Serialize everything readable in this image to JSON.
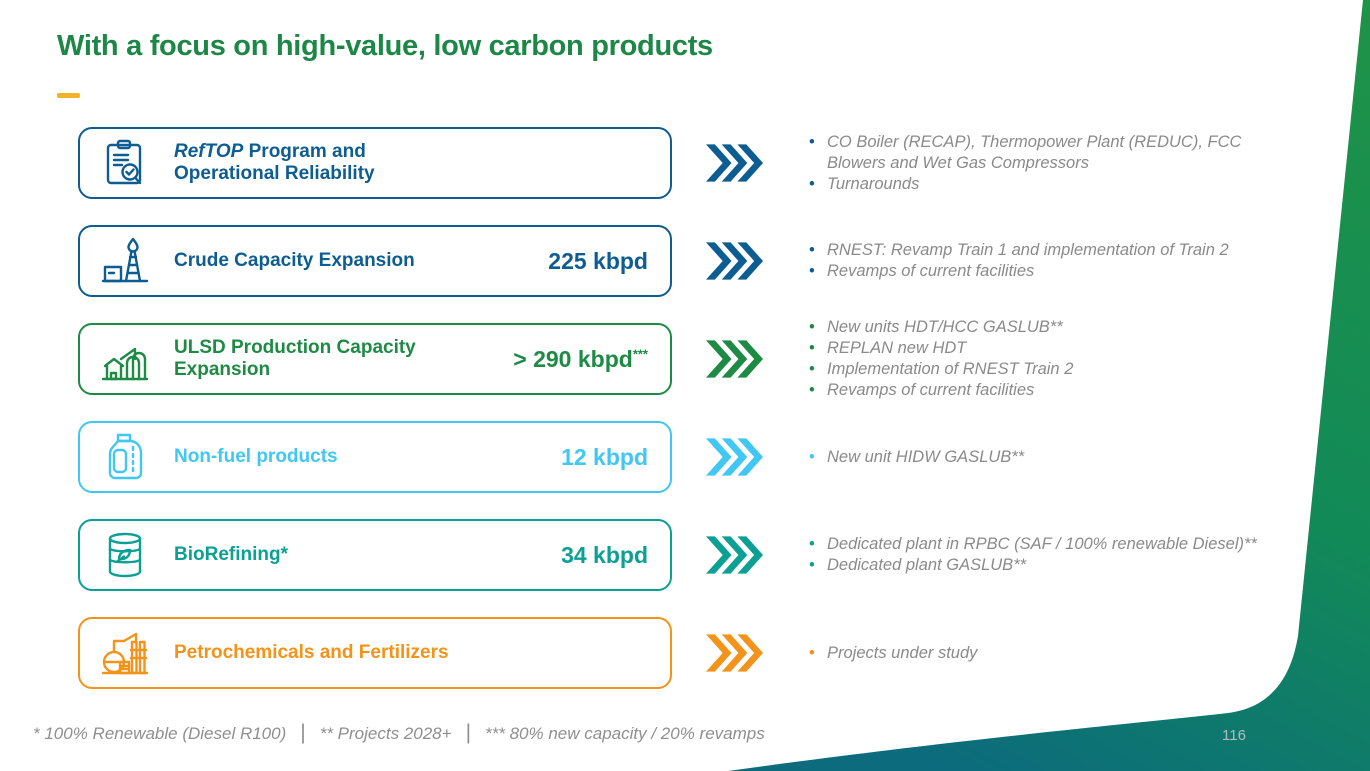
{
  "slide": {
    "title": "With a focus on high-value, low carbon products",
    "page_number": "116",
    "colors": {
      "title": "#1c8747",
      "accent_dash": "#f2b229",
      "swoosh_top": "#1f9347",
      "swoosh_bottom": "#0c6b7d",
      "bullet_text": "#8a8a8a"
    },
    "footnotes": {
      "items": [
        "* 100% Renewable (Diesel R100)",
        "** Projects 2028+",
        "*** 80% new capacity / 20% revamps"
      ],
      "separator": "|"
    },
    "rows": [
      {
        "id": "reftop-program",
        "icon": "clipboard-checklist-icon",
        "label_italic": "RefTOP",
        "label": " Program and\nOperational Reliability",
        "value": "",
        "value_sup": "",
        "color": "#0d5d92",
        "bullets": [
          "CO Boiler (RECAP), Thermopower Plant  (REDUC), FCC Blowers and Wet Gas Compressors",
          "Turnarounds"
        ]
      },
      {
        "id": "crude-capacity-expansion",
        "icon": "oil-derrick-icon",
        "label_italic": "",
        "label": "Crude Capacity Expansion",
        "value": "225 kbpd",
        "value_sup": "",
        "color": "#0d5d92",
        "bullets": [
          "RNEST: Revamp Train 1 and implementation of Train 2",
          "Revamps of current facilities"
        ]
      },
      {
        "id": "ulsd-production-capacity-expansion",
        "icon": "refinery-icon",
        "label_italic": "",
        "label": "ULSD Production Capacity\nExpansion",
        "value": "> 290 kbpd",
        "value_sup": "***",
        "color": "#1e8b45",
        "bullets": [
          "New units HDT/HCC GASLUB**",
          "REPLAN new HDT",
          "Implementation of RNEST Train 2",
          "Revamps of current facilities"
        ]
      },
      {
        "id": "non-fuel-products",
        "icon": "lubricant-jug-icon",
        "label_italic": "",
        "label": "Non-fuel products",
        "value": "12 kbpd",
        "value_sup": "",
        "color": "#41c7f4",
        "bullets": [
          "New unit HIDW GASLUB**"
        ]
      },
      {
        "id": "biorefining",
        "icon": "barrel-leaf-icon",
        "label_italic": "",
        "label": "BioRefining*",
        "value": "34 kbpd",
        "value_sup": "",
        "color": "#0ba093",
        "bullets": [
          "Dedicated plant in RPBC (SAF / 100% renewable Diesel)**",
          "Dedicated plant GASLUB**"
        ]
      },
      {
        "id": "petrochemicals-and-fertilizers",
        "icon": "chemical-plant-icon",
        "label_italic": "",
        "label": "Petrochemicals and Fertilizers",
        "value": "",
        "value_sup": "",
        "color": "#f39319",
        "bullets": [
          "Projects under study"
        ]
      }
    ]
  }
}
